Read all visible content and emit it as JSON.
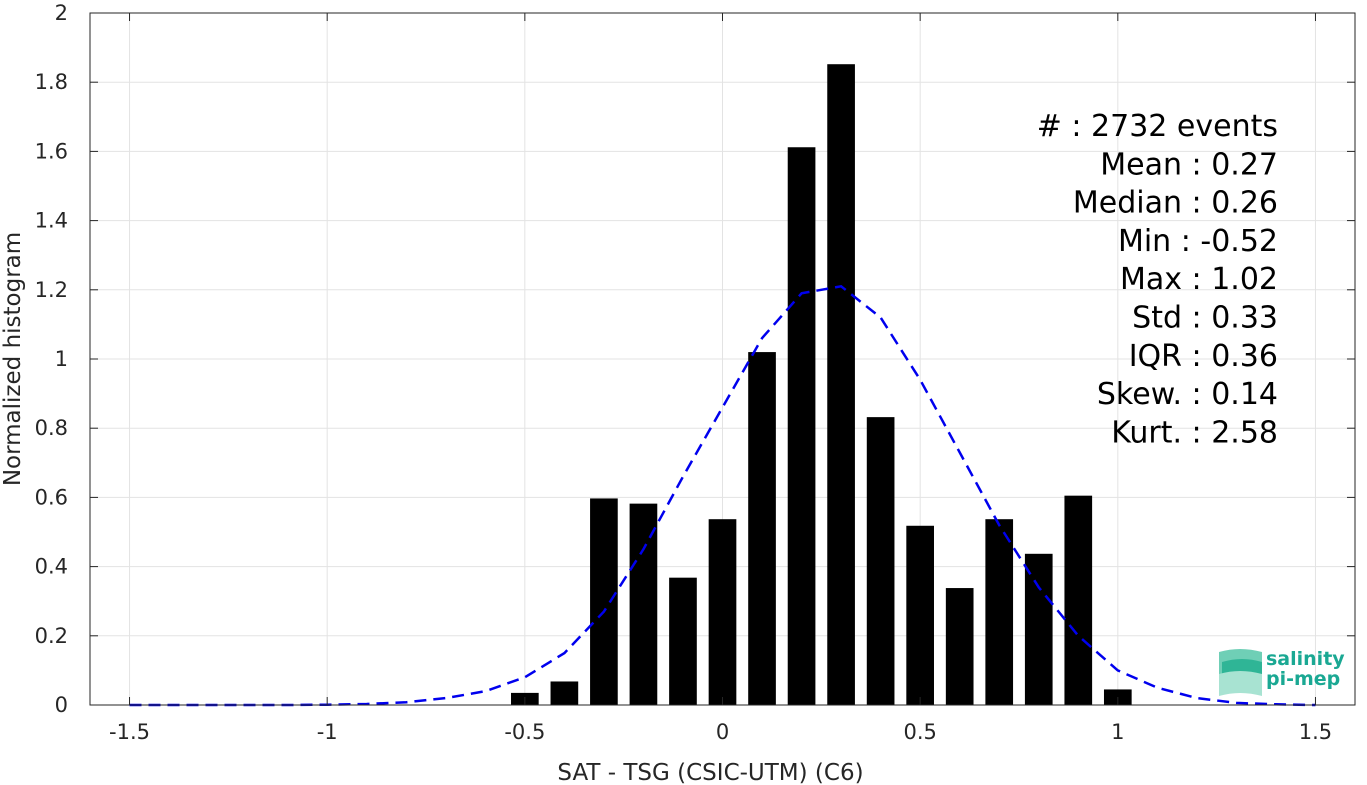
{
  "chart_data": {
    "type": "bar",
    "xlabel": "SAT - TSG (CSIC-UTM) (C6)",
    "ylabel": "Normalized histogram",
    "xlim": [
      -1.6,
      1.6
    ],
    "ylim": [
      0,
      2
    ],
    "xticks": [
      -1.5,
      -1,
      -0.5,
      0,
      0.5,
      1,
      1.5
    ],
    "xtick_labels": [
      "-1.5",
      "-1",
      "-0.5",
      "0",
      "0.5",
      "1",
      "1.5"
    ],
    "yticks": [
      0,
      0.2,
      0.4,
      0.6,
      0.8,
      1,
      1.2,
      1.4,
      1.6,
      1.8,
      2
    ],
    "ytick_labels": [
      "0",
      "0.2",
      "0.4",
      "0.6",
      "0.8",
      "1",
      "1.2",
      "1.4",
      "1.6",
      "1.8",
      "2"
    ],
    "grid": true,
    "bar_width": 0.07,
    "bar_color": "#000000",
    "bars": {
      "x": [
        -0.5,
        -0.4,
        -0.3,
        -0.2,
        -0.1,
        0.0,
        0.1,
        0.2,
        0.3,
        0.4,
        0.5,
        0.6,
        0.7,
        0.8,
        0.9,
        1.0
      ],
      "values": [
        0.035,
        0.068,
        0.597,
        0.582,
        0.368,
        0.537,
        1.02,
        1.612,
        1.852,
        0.832,
        0.518,
        0.338,
        0.537,
        0.437,
        0.605,
        0.045
      ]
    },
    "fit_curve": {
      "style": "dashed",
      "color": "#0000ee",
      "x": [
        -1.5,
        -1.4,
        -1.3,
        -1.2,
        -1.1,
        -1.0,
        -0.9,
        -0.8,
        -0.7,
        -0.6,
        -0.5,
        -0.4,
        -0.3,
        -0.2,
        -0.1,
        0.0,
        0.1,
        0.2,
        0.25,
        0.3,
        0.4,
        0.5,
        0.6,
        0.7,
        0.8,
        0.9,
        1.0,
        1.1,
        1.2,
        1.3,
        1.4,
        1.5
      ],
      "y": [
        0.0,
        0.0,
        0.0,
        0.0,
        0.0,
        0.001,
        0.003,
        0.008,
        0.02,
        0.04,
        0.08,
        0.15,
        0.27,
        0.45,
        0.66,
        0.86,
        1.06,
        1.19,
        1.2,
        1.21,
        1.12,
        0.94,
        0.73,
        0.52,
        0.34,
        0.2,
        0.1,
        0.05,
        0.02,
        0.006,
        0.002,
        0.0
      ]
    },
    "stats_lines": [
      "#  : 2732 events",
      "Mean : 0.27",
      "Median : 0.26",
      "Min : -0.52",
      "Max : 1.02",
      "Std : 0.33",
      "IQR : 0.36",
      "Skew. : 0.14",
      "Kurt. : 2.58"
    ]
  },
  "logo": {
    "line1": "salinity",
    "line2": "pi-mep",
    "color": "#1aa893"
  }
}
